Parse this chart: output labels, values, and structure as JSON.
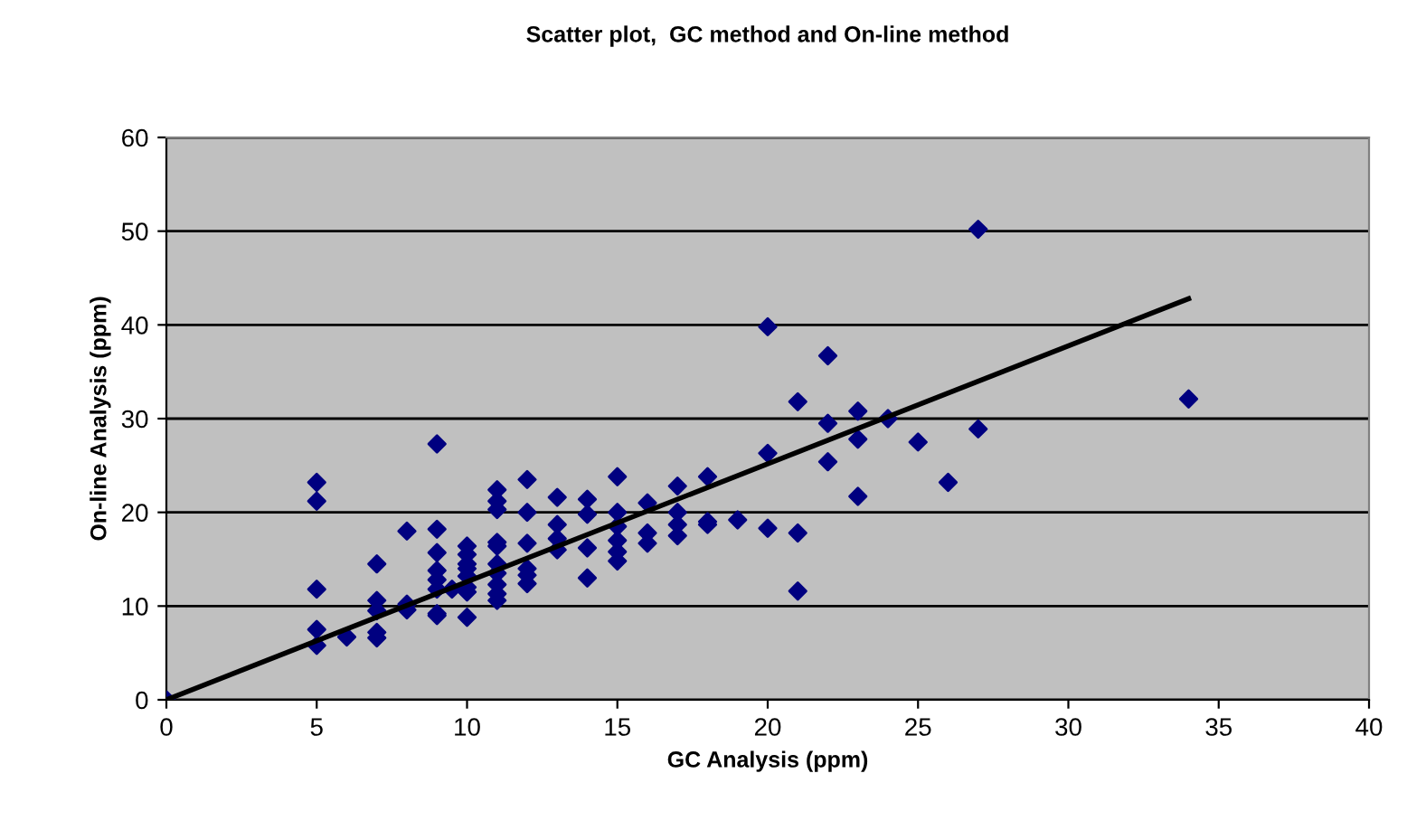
{
  "chart_data": {
    "type": "scatter",
    "title": "Scatter plot,  GC method and On-line method",
    "xlabel": "GC Analysis (ppm)",
    "ylabel": "On-line Analysis (ppm)",
    "xlim": [
      0,
      40
    ],
    "xticks": [
      0,
      5,
      10,
      15,
      20,
      25,
      30,
      35,
      40
    ],
    "ylim": [
      0,
      60
    ],
    "yticks": [
      0,
      10,
      20,
      30,
      40,
      50,
      60
    ],
    "grid": "y",
    "series": [
      {
        "color": "#000080",
        "marker": "diamond",
        "x": [
          0,
          5,
          5,
          5,
          5,
          5,
          6,
          7,
          7,
          7,
          7,
          7,
          8,
          8,
          8,
          9,
          9,
          9,
          9,
          9,
          9,
          9,
          9,
          9.5,
          10,
          10,
          10,
          10,
          10,
          10,
          10,
          10,
          11,
          11,
          11,
          11,
          11,
          11,
          11,
          11,
          11,
          11,
          12,
          12,
          12,
          12,
          12,
          12,
          13,
          13,
          13,
          13,
          14,
          14,
          14,
          14,
          15,
          15,
          15,
          15,
          15,
          15,
          16,
          16,
          16,
          17,
          17,
          17,
          17,
          18,
          18,
          18,
          19,
          20,
          20,
          20,
          21,
          21,
          21,
          22,
          22,
          22,
          23,
          23,
          23,
          24,
          25,
          26,
          27,
          27,
          34
        ],
        "values": [
          0,
          23.2,
          21.2,
          11.8,
          7.5,
          5.8,
          6.7,
          14.5,
          10.6,
          9.5,
          7.2,
          6.6,
          18,
          10.2,
          9.6,
          27.3,
          18.2,
          15.7,
          13.8,
          12.8,
          11.8,
          9.2,
          9,
          11.8,
          16.4,
          15.5,
          14.5,
          14,
          13.2,
          12,
          11.5,
          8.8,
          22.4,
          21.2,
          20.3,
          16.8,
          16.4,
          14.5,
          13.5,
          12.3,
          11.3,
          10.6,
          23.5,
          20,
          16.7,
          14,
          13.3,
          12.4,
          21.6,
          18.7,
          17.2,
          16,
          21.4,
          19.8,
          16.2,
          13,
          23.8,
          20,
          18.5,
          17,
          15.8,
          14.8,
          21,
          17.8,
          16.7,
          22.8,
          20,
          18.7,
          17.5,
          23.8,
          19,
          18.7,
          19.2,
          39.8,
          26.3,
          18.3,
          31.8,
          17.8,
          11.6,
          36.7,
          29.5,
          25.4,
          30.8,
          27.8,
          21.7,
          30,
          27.5,
          23.2,
          50.2,
          28.9,
          32.1
        ]
      },
      {
        "type": "line",
        "color": "#000000",
        "marker": "none",
        "line_style": "solid",
        "x": [
          0,
          34
        ],
        "values": [
          0,
          42.8
        ]
      }
    ]
  }
}
